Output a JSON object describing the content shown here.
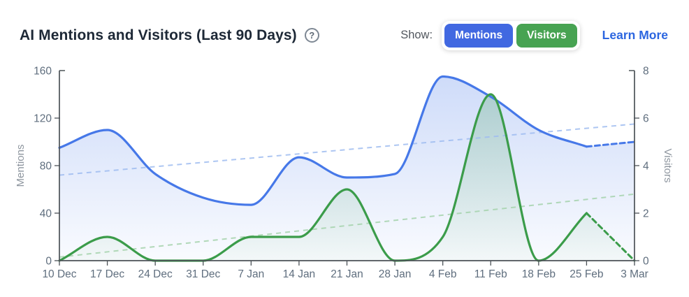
{
  "header": {
    "title": "AI Mentions and Visitors (Last 90 Days)",
    "help_icon_glyph": "?",
    "show_label": "Show:",
    "toggles": [
      {
        "label": "Mentions",
        "color": "#4168e1",
        "active": true
      },
      {
        "label": "Visitors",
        "color": "#47a352",
        "active": true
      }
    ],
    "learn_more_label": "Learn More"
  },
  "chart_data": {
    "type": "line",
    "title": "AI Mentions and Visitors (Last 90 Days)",
    "x_categories": [
      "10 Dec",
      "17 Dec",
      "24 Dec",
      "31 Dec",
      "7 Jan",
      "14 Jan",
      "21 Jan",
      "28 Jan",
      "4 Feb",
      "11 Feb",
      "18 Feb",
      "25 Feb",
      "3 Mar"
    ],
    "series": [
      {
        "name": "Mentions",
        "axis": "left",
        "color": "#4678e8",
        "values": [
          95,
          110,
          73,
          53,
          47,
          87,
          70,
          73,
          155,
          138,
          110,
          96,
          100
        ],
        "solid_until_index": 11,
        "style_after": "dashed-forecast",
        "area_fill": true
      },
      {
        "name": "Visitors",
        "axis": "right",
        "color": "#3b9c4a",
        "values": [
          0,
          1,
          0,
          0,
          1,
          1,
          3,
          0,
          1,
          7,
          0,
          2,
          0
        ],
        "solid_until_index": 11,
        "style_after": "dashed-forecast",
        "area_fill": true
      }
    ],
    "trendlines": [
      {
        "name": "Mentions trend",
        "axis": "left",
        "color": "#9fbcf0",
        "start": 72,
        "end": 115
      },
      {
        "name": "Visitors trend",
        "axis": "right",
        "color": "#a5d2ab",
        "start": 0.15,
        "end": 2.8
      }
    ],
    "left_axis": {
      "title": "Mentions",
      "ticks": [
        0,
        40,
        80,
        120,
        160
      ],
      "min": 0,
      "max": 160
    },
    "right_axis": {
      "title": "Visitors",
      "ticks": [
        0,
        2,
        4,
        6,
        8
      ],
      "min": 0,
      "max": 8
    },
    "grid": false,
    "legend_position": "header-toggles",
    "axis_color": "#4c5257",
    "tick_label_color": "#5f6e7e",
    "axis_title_color": "#8d959e"
  }
}
